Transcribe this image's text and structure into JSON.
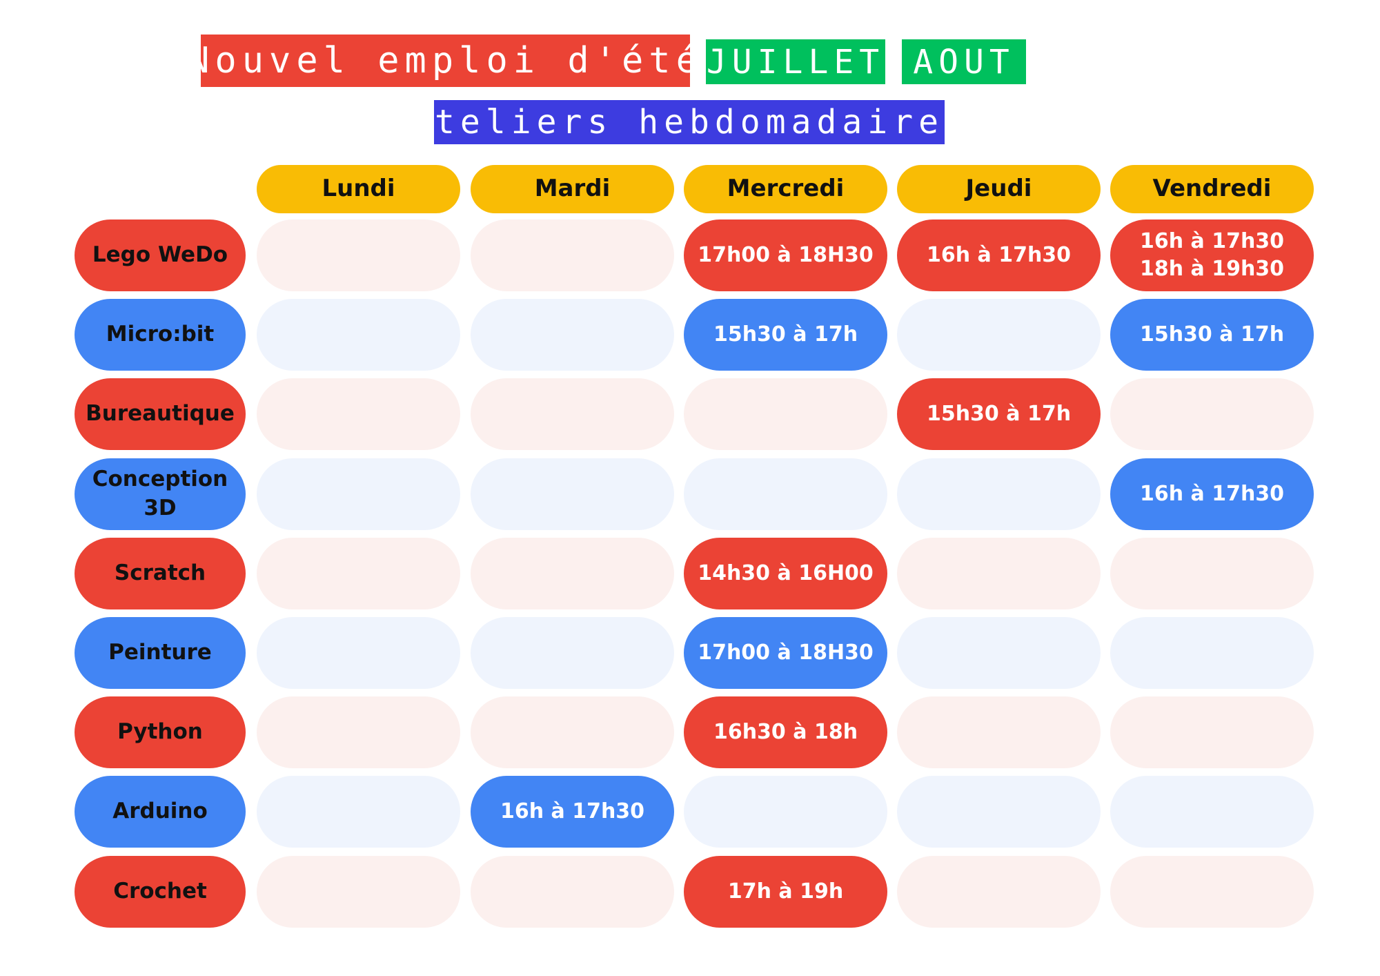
{
  "header": {
    "title": "Nouvel emploi d'été",
    "months": [
      "JUILLET",
      "AOUT"
    ],
    "subtitle": "Ateliers hebdomadaires"
  },
  "colors": {
    "title_bg": "#EB4335",
    "month_bg": "#00C05D",
    "subtitle_bg": "#3D3CE0",
    "day_bg": "#F9BC05",
    "red": "#EB4335",
    "blue": "#4285F4",
    "red_empty": "#FCF0EE",
    "blue_empty": "#EFF4FD"
  },
  "days": [
    "Lundi",
    "Mardi",
    "Mercredi",
    "Jeudi",
    "Vendredi"
  ],
  "rows": [
    {
      "course": "Lego WeDo",
      "color": "red",
      "slots": [
        [],
        [],
        [
          "17h00 à 18H30"
        ],
        [
          "16h à 17h30"
        ],
        [
          "16h à 17h30",
          "18h à 19h30"
        ]
      ]
    },
    {
      "course": "Micro:bit",
      "color": "blue",
      "slots": [
        [],
        [],
        [
          "15h30 à 17h"
        ],
        [],
        [
          "15h30 à 17h"
        ]
      ]
    },
    {
      "course": "Bureautique",
      "color": "red",
      "slots": [
        [],
        [],
        [],
        [
          "15h30 à 17h"
        ],
        []
      ]
    },
    {
      "course": "Conception 3D",
      "color": "blue",
      "slots": [
        [],
        [],
        [],
        [],
        [
          "16h à 17h30"
        ]
      ]
    },
    {
      "course": "Scratch",
      "color": "red",
      "slots": [
        [],
        [],
        [
          "14h30 à 16H00"
        ],
        [],
        []
      ]
    },
    {
      "course": "Peinture",
      "color": "blue",
      "slots": [
        [],
        [],
        [
          "17h00 à 18H30"
        ],
        [],
        []
      ]
    },
    {
      "course": "Python",
      "color": "red",
      "slots": [
        [],
        [],
        [
          "16h30 à 18h"
        ],
        [],
        []
      ]
    },
    {
      "course": "Arduino",
      "color": "blue",
      "slots": [
        [],
        [
          "16h à 17h30"
        ],
        [],
        [],
        []
      ]
    },
    {
      "course": "Crochet",
      "color": "red",
      "slots": [
        [],
        [],
        [
          "17h à 19h"
        ],
        [],
        []
      ]
    }
  ]
}
